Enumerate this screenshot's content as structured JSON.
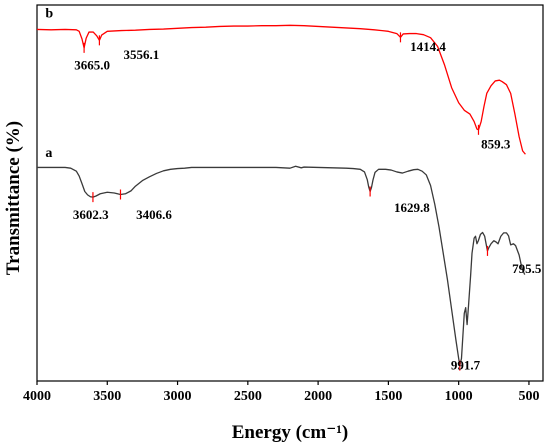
{
  "chart_data": {
    "type": "line",
    "title": "",
    "xlabel": "Energy (cm⁻¹)",
    "ylabel": "Transmittance (%)",
    "xlim": [
      4000,
      400
    ],
    "x_reversed": true,
    "xticks": [
      4000,
      3500,
      3000,
      2500,
      2000,
      1500,
      1000,
      500
    ],
    "ylim": [
      0,
      100
    ],
    "y_ticks_shown": false,
    "grid": false,
    "legend": "none",
    "series": [
      {
        "name": "b",
        "color": "#ff0000",
        "points": [
          [
            4000,
            93.5
          ],
          [
            3900,
            93.4
          ],
          [
            3800,
            93.5
          ],
          [
            3720,
            93.4
          ],
          [
            3700,
            93.0
          ],
          [
            3680,
            91.0
          ],
          [
            3665,
            88.6
          ],
          [
            3650,
            91.2
          ],
          [
            3630,
            92.8
          ],
          [
            3600,
            92.8
          ],
          [
            3575,
            91.8
          ],
          [
            3556,
            90.6
          ],
          [
            3540,
            92.0
          ],
          [
            3500,
            93.0
          ],
          [
            3400,
            93.2
          ],
          [
            3300,
            93.3
          ],
          [
            3200,
            93.5
          ],
          [
            3100,
            93.6
          ],
          [
            3000,
            93.8
          ],
          [
            2900,
            94.0
          ],
          [
            2800,
            94.1
          ],
          [
            2700,
            94.3
          ],
          [
            2600,
            94.4
          ],
          [
            2500,
            94.4
          ],
          [
            2400,
            94.5
          ],
          [
            2300,
            94.5
          ],
          [
            2200,
            94.6
          ],
          [
            2100,
            94.5
          ],
          [
            2000,
            94.3
          ],
          [
            1900,
            94.1
          ],
          [
            1800,
            93.9
          ],
          [
            1700,
            93.7
          ],
          [
            1600,
            93.4
          ],
          [
            1500,
            93.0
          ],
          [
            1440,
            92.4
          ],
          [
            1414,
            91.4
          ],
          [
            1395,
            92.3
          ],
          [
            1350,
            92.4
          ],
          [
            1300,
            92.4
          ],
          [
            1250,
            92.1
          ],
          [
            1200,
            91.3
          ],
          [
            1150,
            89.0
          ],
          [
            1100,
            84.0
          ],
          [
            1050,
            78.0
          ],
          [
            1000,
            74.0
          ],
          [
            960,
            72.0
          ],
          [
            920,
            71.0
          ],
          [
            890,
            69.0
          ],
          [
            870,
            67.0
          ],
          [
            859,
            66.8
          ],
          [
            840,
            69.0
          ],
          [
            820,
            73.0
          ],
          [
            800,
            76.5
          ],
          [
            770,
            78.5
          ],
          [
            740,
            79.8
          ],
          [
            710,
            80.0
          ],
          [
            690,
            79.6
          ],
          [
            660,
            78.8
          ],
          [
            630,
            76.5
          ],
          [
            600,
            71.0
          ],
          [
            570,
            65.0
          ],
          [
            545,
            61.2
          ],
          [
            525,
            60.3
          ]
        ]
      },
      {
        "name": "a",
        "color": "#3a3a3a",
        "points": [
          [
            4000,
            56.8
          ],
          [
            3900,
            56.8
          ],
          [
            3800,
            56.8
          ],
          [
            3760,
            56.6
          ],
          [
            3720,
            55.8
          ],
          [
            3700,
            54.5
          ],
          [
            3680,
            52.5
          ],
          [
            3660,
            50.4
          ],
          [
            3640,
            49.5
          ],
          [
            3620,
            49.0
          ],
          [
            3602,
            48.9
          ],
          [
            3580,
            49.2
          ],
          [
            3550,
            49.8
          ],
          [
            3500,
            50.2
          ],
          [
            3450,
            50.0
          ],
          [
            3406,
            49.6
          ],
          [
            3370,
            49.8
          ],
          [
            3330,
            50.6
          ],
          [
            3300,
            51.8
          ],
          [
            3250,
            53.3
          ],
          [
            3200,
            54.3
          ],
          [
            3150,
            55.2
          ],
          [
            3100,
            55.9
          ],
          [
            3050,
            56.3
          ],
          [
            3000,
            56.5
          ],
          [
            2950,
            56.6
          ],
          [
            2900,
            56.8
          ],
          [
            2800,
            56.8
          ],
          [
            2700,
            56.8
          ],
          [
            2600,
            56.8
          ],
          [
            2500,
            56.8
          ],
          [
            2400,
            56.8
          ],
          [
            2300,
            56.8
          ],
          [
            2250,
            56.7
          ],
          [
            2200,
            56.6
          ],
          [
            2160,
            57.1
          ],
          [
            2120,
            56.7
          ],
          [
            2100,
            56.9
          ],
          [
            2000,
            56.8
          ],
          [
            1900,
            56.7
          ],
          [
            1800,
            56.6
          ],
          [
            1750,
            56.5
          ],
          [
            1700,
            56.3
          ],
          [
            1670,
            55.6
          ],
          [
            1650,
            53.5
          ],
          [
            1640,
            51.6
          ],
          [
            1630,
            50.4
          ],
          [
            1620,
            51.5
          ],
          [
            1610,
            53.4
          ],
          [
            1595,
            55.5
          ],
          [
            1570,
            56.3
          ],
          [
            1520,
            56.3
          ],
          [
            1480,
            56.1
          ],
          [
            1440,
            55.6
          ],
          [
            1400,
            55.3
          ],
          [
            1360,
            55.8
          ],
          [
            1320,
            56.2
          ],
          [
            1290,
            56.3
          ],
          [
            1260,
            55.8
          ],
          [
            1230,
            54.8
          ],
          [
            1200,
            52.0
          ],
          [
            1170,
            47.0
          ],
          [
            1140,
            41.0
          ],
          [
            1110,
            34.0
          ],
          [
            1080,
            27.0
          ],
          [
            1050,
            19.0
          ],
          [
            1020,
            11.0
          ],
          [
            1000,
            6.0
          ],
          [
            992,
            4.1
          ],
          [
            980,
            6.0
          ],
          [
            970,
            12.0
          ],
          [
            960,
            18.0
          ],
          [
            950,
            19.5
          ],
          [
            940,
            15.0
          ],
          [
            930,
            20.0
          ],
          [
            915,
            28.0
          ],
          [
            905,
            34.0
          ],
          [
            890,
            38.0
          ],
          [
            880,
            38.5
          ],
          [
            870,
            36.5
          ],
          [
            860,
            37.3
          ],
          [
            845,
            39.0
          ],
          [
            830,
            39.5
          ],
          [
            815,
            38.5
          ],
          [
            800,
            35.5
          ],
          [
            795,
            34.6
          ],
          [
            785,
            35.5
          ],
          [
            770,
            36.5
          ],
          [
            750,
            37.3
          ],
          [
            735,
            37.0
          ],
          [
            720,
            36.5
          ],
          [
            700,
            38.5
          ],
          [
            680,
            39.4
          ],
          [
            660,
            39.4
          ],
          [
            645,
            38.6
          ],
          [
            630,
            36.2
          ],
          [
            610,
            36.5
          ],
          [
            595,
            36.0
          ],
          [
            570,
            33.5
          ],
          [
            550,
            30.0
          ],
          [
            530,
            28.3
          ]
        ]
      }
    ],
    "series_labels": [
      {
        "text": "b",
        "x": 3940,
        "y": 96.7
      },
      {
        "text": "a",
        "x": 3940,
        "y": 59.6
      }
    ],
    "peak_annotations": [
      {
        "series": "b",
        "x": 3665,
        "y": 88.6,
        "label": "3665.0",
        "label_x": 3735,
        "label_y": 82.8
      },
      {
        "series": "b",
        "x": 3556,
        "y": 90.6,
        "label": "3556.1",
        "label_x": 3385,
        "label_y": 85.6
      },
      {
        "series": "b",
        "x": 1414,
        "y": 91.4,
        "label": "1414.4",
        "label_x": 1345,
        "label_y": 87.8
      },
      {
        "series": "b",
        "x": 859,
        "y": 66.8,
        "label": "859.3",
        "label_x": 840,
        "label_y": 61.8
      },
      {
        "series": "a",
        "x": 3602,
        "y": 48.9,
        "label": "3602.3",
        "label_x": 3745,
        "label_y": 43.1
      },
      {
        "series": "a",
        "x": 3406,
        "y": 49.6,
        "label": "3406.6",
        "label_x": 3295,
        "label_y": 43.1
      },
      {
        "series": "a",
        "x": 1630,
        "y": 50.4,
        "label": "1629.8",
        "label_x": 1460,
        "label_y": 45.0
      },
      {
        "series": "a",
        "x": 795,
        "y": 34.6,
        "label": "795.5",
        "label_x": 620,
        "label_y": 28.7
      },
      {
        "series": "a",
        "x": 992,
        "y": 4.1,
        "label": "991.7",
        "label_x": 1055,
        "label_y": 3.0
      }
    ]
  }
}
